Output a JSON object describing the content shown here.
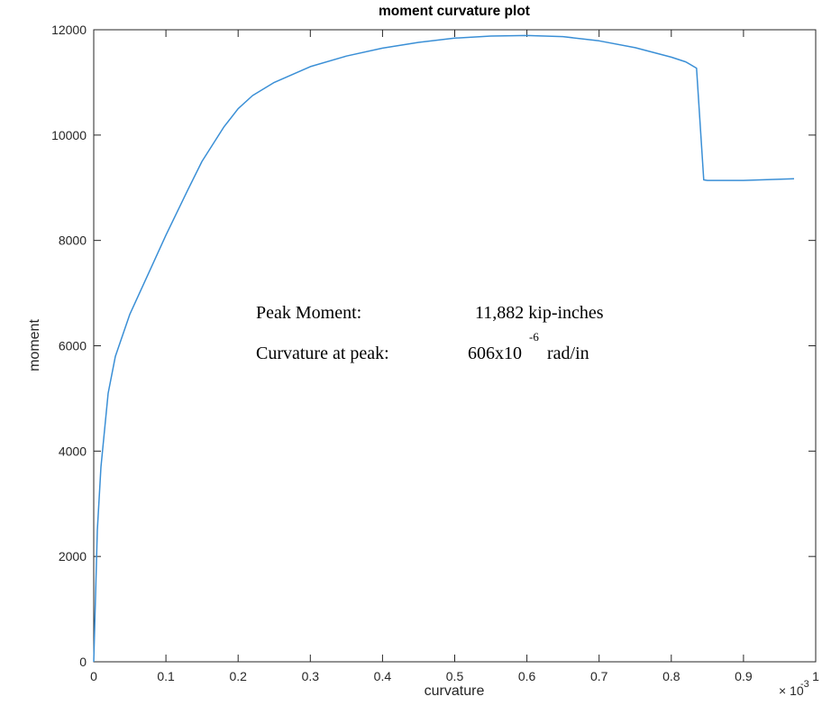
{
  "chart_data": {
    "type": "line",
    "title": "moment curvature plot",
    "xlabel": "curvature",
    "ylabel": "moment",
    "x_exponent_label": "× 10",
    "x_exponent_power": "-3",
    "xlim": [
      0,
      1
    ],
    "ylim": [
      0,
      12000
    ],
    "x_ticks": [
      0,
      0.1,
      0.2,
      0.3,
      0.4,
      0.5,
      0.6,
      0.7,
      0.8,
      0.9,
      1
    ],
    "x_tick_labels": [
      "0",
      "0.1",
      "0.2",
      "0.3",
      "0.4",
      "0.5",
      "0.6",
      "0.7",
      "0.8",
      "0.9",
      "1"
    ],
    "y_ticks": [
      0,
      2000,
      4000,
      6000,
      8000,
      10000,
      12000
    ],
    "y_tick_labels": [
      "0",
      "2000",
      "4000",
      "6000",
      "8000",
      "10000",
      "12000"
    ],
    "grid": false,
    "line_color": "#3a8fd6",
    "series": [
      {
        "x": [
          0,
          0.005,
          0.01,
          0.02,
          0.03,
          0.05,
          0.08,
          0.1,
          0.13,
          0.15,
          0.18,
          0.2,
          0.22,
          0.25,
          0.3,
          0.35,
          0.4,
          0.45,
          0.5,
          0.55,
          0.6,
          0.65,
          0.7,
          0.75,
          0.8,
          0.82,
          0.835,
          0.845,
          0.85,
          0.9,
          0.97
        ],
        "y": [
          0,
          2500,
          3700,
          5100,
          5800,
          6600,
          7500,
          8100,
          8950,
          9500,
          10150,
          10500,
          10750,
          11000,
          11300,
          11500,
          11650,
          11760,
          11840,
          11880,
          11890,
          11870,
          11790,
          11660,
          11480,
          11390,
          11270,
          9150,
          9140,
          9140,
          9170
        ]
      }
    ],
    "annotations": {
      "peak_label": "Peak Moment:",
      "peak_value": "11,882 kip-inches",
      "curv_label": "Curvature at peak:",
      "curv_base": "606x10",
      "curv_exp": "-6",
      "curv_unit": "rad/in"
    }
  }
}
